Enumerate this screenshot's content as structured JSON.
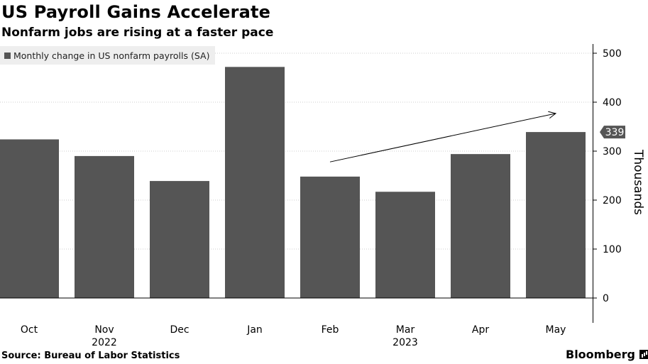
{
  "header": {
    "title": "US Payroll Gains Accelerate",
    "subtitle": "Nonfarm jobs are rising at a faster pace"
  },
  "legend": {
    "label": "Monthly change in US nonfarm payrolls (SA)"
  },
  "footer": {
    "source": "Source: Bureau of Labor Statistics",
    "brand": "Bloomberg"
  },
  "colors": {
    "bar": "#555555",
    "grid": "#cccccc",
    "axis": "#000000",
    "callout_bg": "#555555",
    "callout_text": "#ffffff"
  },
  "chart_data": {
    "type": "bar",
    "title": "US Payroll Gains Accelerate",
    "subtitle": "Nonfarm jobs are rising at a faster pace",
    "categories": [
      "Oct",
      "Nov",
      "Dec",
      "Jan",
      "Feb",
      "Mar",
      "Apr",
      "May"
    ],
    "year_labels": [
      {
        "category": "Nov",
        "text": "2022"
      },
      {
        "category": "Mar",
        "text": "2023"
      }
    ],
    "series": [
      {
        "name": "Monthly change in US nonfarm payrolls (SA)",
        "values": [
          324,
          290,
          239,
          472,
          248,
          217,
          294,
          339
        ]
      }
    ],
    "ylabel": "Thousands",
    "ylim": [
      0,
      500
    ],
    "yticks": [
      0,
      100,
      200,
      300,
      400,
      500
    ],
    "y_axis_side": "right",
    "grid": true,
    "legend_position": "top-left",
    "callout": {
      "category": "May",
      "value": 339,
      "label": "339"
    },
    "trend_arrow": {
      "from": {
        "category": "Feb",
        "value": 278
      },
      "to": {
        "category": "May",
        "value": 377
      }
    }
  }
}
